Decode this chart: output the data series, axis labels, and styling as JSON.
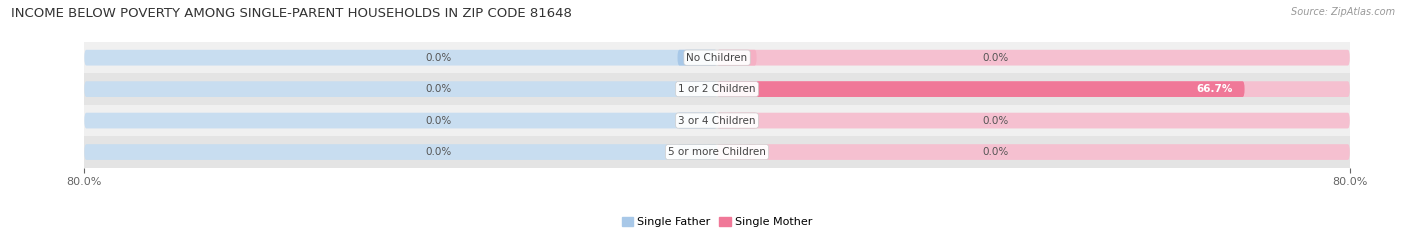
{
  "title": "INCOME BELOW POVERTY AMONG SINGLE-PARENT HOUSEHOLDS IN ZIP CODE 81648",
  "source_text": "Source: ZipAtlas.com",
  "categories": [
    "No Children",
    "1 or 2 Children",
    "3 or 4 Children",
    "5 or more Children"
  ],
  "single_father": [
    0.0,
    0.0,
    0.0,
    0.0
  ],
  "single_mother": [
    0.0,
    66.7,
    0.0,
    0.0
  ],
  "father_color": "#a8c8e8",
  "mother_color": "#f07898",
  "mother_color_light": "#f5b0c4",
  "bar_bg_father": "#c8ddf0",
  "bar_bg_mother": "#f5c0d0",
  "row_bg_odd": "#f0f0f0",
  "row_bg_even": "#e4e4e4",
  "xlim": 80.0,
  "title_fontsize": 9.5,
  "label_fontsize": 7.5,
  "tick_fontsize": 8.0,
  "legend_fontsize": 8.0,
  "source_fontsize": 7.0,
  "bar_height": 0.5,
  "fig_bg_color": "#ffffff",
  "value_label_color": "#555555",
  "category_label_color": "#444444",
  "bar_min_display": 5.0
}
